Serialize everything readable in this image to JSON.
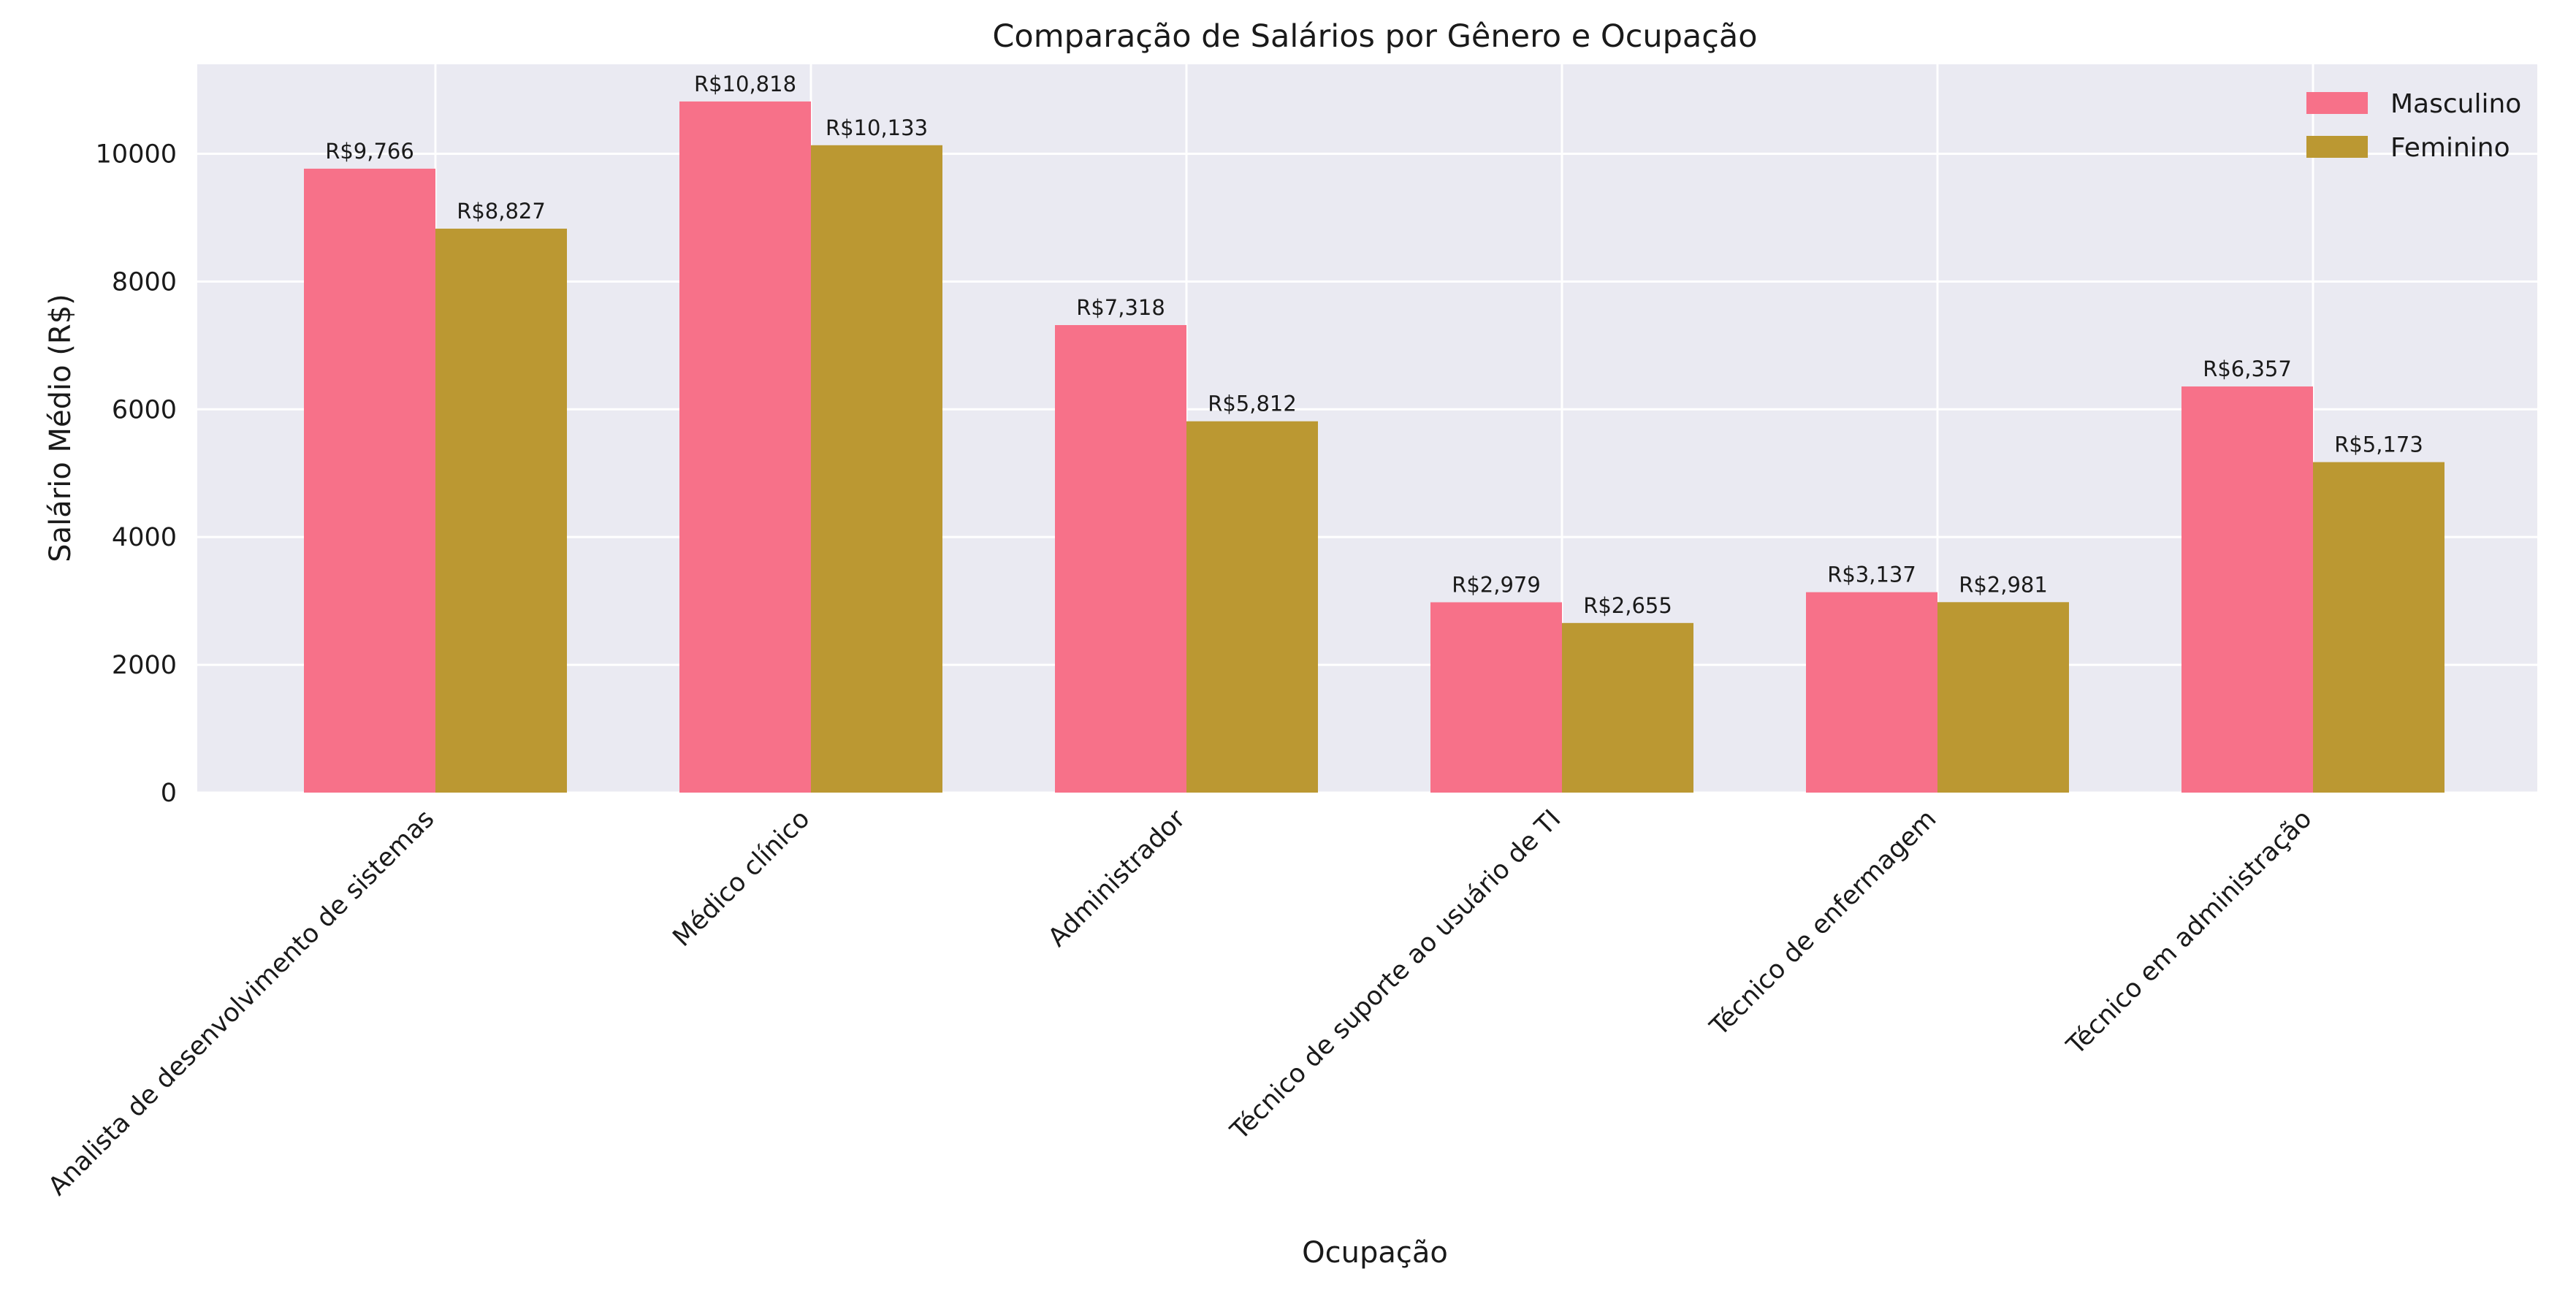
{
  "chart_data": {
    "type": "bar",
    "title": "Comparação de Salários por Gênero e Ocupação",
    "xlabel": "Ocupação",
    "ylabel": "Salário Médio (R$)",
    "ylim": [
      0,
      11400
    ],
    "yticks": [
      0,
      2000,
      4000,
      6000,
      8000,
      10000
    ],
    "grid": true,
    "legend_position": "top-right",
    "categories": [
      "Analista de desenvolvimento de sistemas",
      "Médico clínico",
      "Administrador",
      "Técnico de suporte ao usuário de TI",
      "Técnico de enfermagem",
      "Técnico em administração"
    ],
    "series": [
      {
        "name": "Masculino",
        "color": "#f77189",
        "values": [
          9766,
          10818,
          7318,
          2979,
          3137,
          6357
        ],
        "labels": [
          "R$9,766",
          "R$10,818",
          "R$7,318",
          "R$2,979",
          "R$3,137",
          "R$6,357"
        ]
      },
      {
        "name": "Feminino",
        "color": "#bb9832",
        "values": [
          8827,
          10133,
          5812,
          2655,
          2981,
          5173
        ],
        "labels": [
          "R$8,827",
          "R$10,133",
          "R$5,812",
          "R$2,655",
          "R$2,981",
          "R$5,173"
        ]
      }
    ]
  }
}
